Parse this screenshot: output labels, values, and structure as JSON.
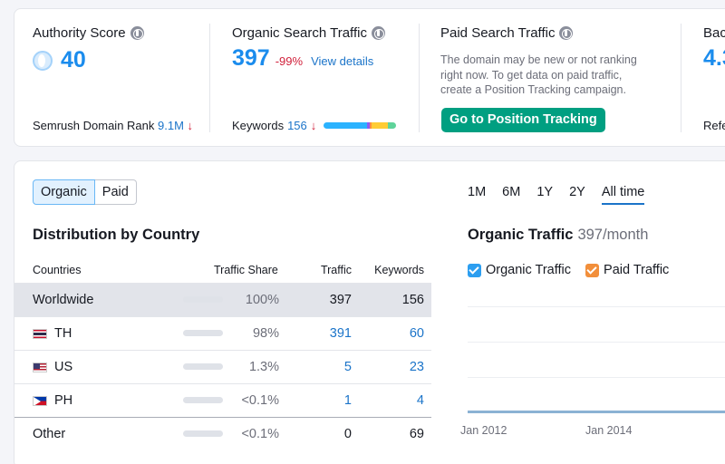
{
  "summary": {
    "authority": {
      "title": "Authority Score",
      "value": "40",
      "rank_label": "Semrush Domain Rank",
      "rank_value": "9.1M",
      "rank_trend": "↓"
    },
    "organic": {
      "title": "Organic Search Traffic",
      "value": "397",
      "delta": "-99%",
      "link": "View details",
      "keywords_label": "Keywords",
      "keywords_value": "156",
      "keywords_trend": "↓",
      "keyword_bar_colors": [
        "#2bb3ff",
        "#2bb3ff",
        "#ff8c42",
        "#ffcc33",
        "#5fd39a"
      ]
    },
    "paid": {
      "title": "Paid Search Traffic",
      "description_lines": [
        "The domain may be new or not ranking",
        "right now. To get data on paid traffic,",
        "create a Position Tracking campaign."
      ],
      "cta": "Go to Position Tracking"
    },
    "backlinks": {
      "title": "Bac",
      "value": "4.3",
      "footer": "Refe"
    }
  },
  "main": {
    "toggle": [
      "Organic",
      "Paid"
    ],
    "section_title": "Distribution by Country",
    "columns": [
      "Countries",
      "Traffic Share",
      "Traffic",
      "Keywords"
    ],
    "rows": [
      {
        "country": "Worldwide",
        "flag": "",
        "share_pct": 100,
        "share": "100%",
        "traffic": "397",
        "keywords": "156"
      },
      {
        "country": "TH",
        "flag": "th",
        "share_pct": 98,
        "share": "98%",
        "traffic": "391",
        "keywords": "60"
      },
      {
        "country": "US",
        "flag": "us",
        "share_pct": 1.3,
        "share": "1.3%",
        "traffic": "5",
        "keywords": "23"
      },
      {
        "country": "PH",
        "flag": "ph",
        "share_pct": 0.1,
        "share": "<0.1%",
        "traffic": "1",
        "keywords": "4"
      },
      {
        "country": "Other",
        "flag": "",
        "share_pct": 0.1,
        "share": "<0.1%",
        "traffic": "0",
        "keywords": "69"
      }
    ],
    "periods": [
      "1M",
      "6M",
      "1Y",
      "2Y",
      "All time"
    ],
    "active_period": "All time",
    "chart_title": "Organic Traffic",
    "chart_subtitle": "397/month",
    "legend": [
      {
        "label": "Organic Traffic",
        "color": "#2c9ef0"
      },
      {
        "label": "Paid Traffic",
        "color": "#f28f3b"
      }
    ],
    "x_ticks": [
      "Jan 2012",
      "Jan 2014"
    ]
  },
  "colors": {
    "accent": "#1b8ced",
    "cta": "#009f81",
    "negative": "#d1213b",
    "link": "#1b74c9"
  }
}
